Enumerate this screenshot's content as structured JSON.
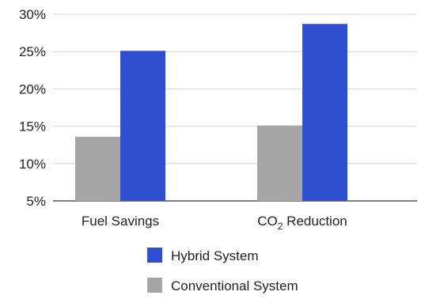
{
  "chart_data": {
    "type": "bar",
    "categories": [
      "Fuel Savings",
      "CO2 Reduction"
    ],
    "category_labels": [
      {
        "main": "Fuel Savings",
        "sub": "",
        "tail": ""
      },
      {
        "main": "CO",
        "sub": "2",
        "tail": " Reduction"
      }
    ],
    "series": [
      {
        "name": "Conventional System",
        "values": [
          13.6,
          15.1
        ],
        "color": "#a6a6a6"
      },
      {
        "name": "Hybrid System",
        "values": [
          25.1,
          28.7
        ],
        "color": "#2f4fd0"
      }
    ],
    "ylim": [
      5,
      30
    ],
    "yticks": [
      5,
      10,
      15,
      20,
      25,
      30
    ],
    "ytick_labels": [
      "5%",
      "10%",
      "15%",
      "20%",
      "25%",
      "30%"
    ],
    "grid": "horizontal",
    "legend_placement": "bottom",
    "legend_order": [
      "Hybrid System",
      "Conventional System"
    ],
    "title": "",
    "xlabel": "",
    "ylabel": ""
  }
}
